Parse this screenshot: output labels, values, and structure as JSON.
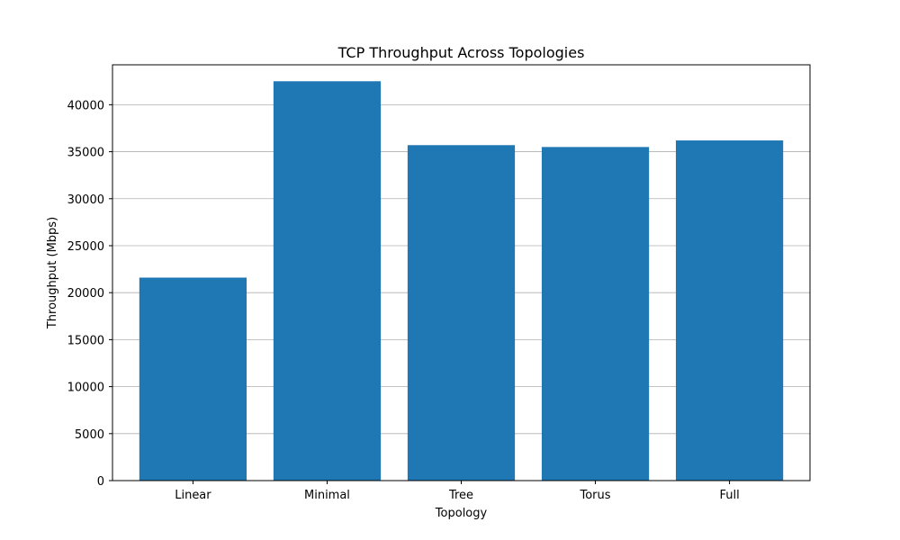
{
  "chart_data": {
    "type": "bar",
    "title": "TCP Throughput Across Topologies",
    "xlabel": "Topology",
    "ylabel": "Throughput (Mbps)",
    "categories": [
      "Linear",
      "Minimal",
      "Tree",
      "Torus",
      "Full"
    ],
    "values": [
      21600,
      42500,
      35700,
      35500,
      36200
    ],
    "ylim": [
      0,
      44250
    ],
    "yticks": [
      0,
      5000,
      10000,
      15000,
      20000,
      25000,
      30000,
      35000,
      40000
    ],
    "grid": "y",
    "bar_color": "#1f77b4",
    "grid_color": "#b0b0b0"
  }
}
